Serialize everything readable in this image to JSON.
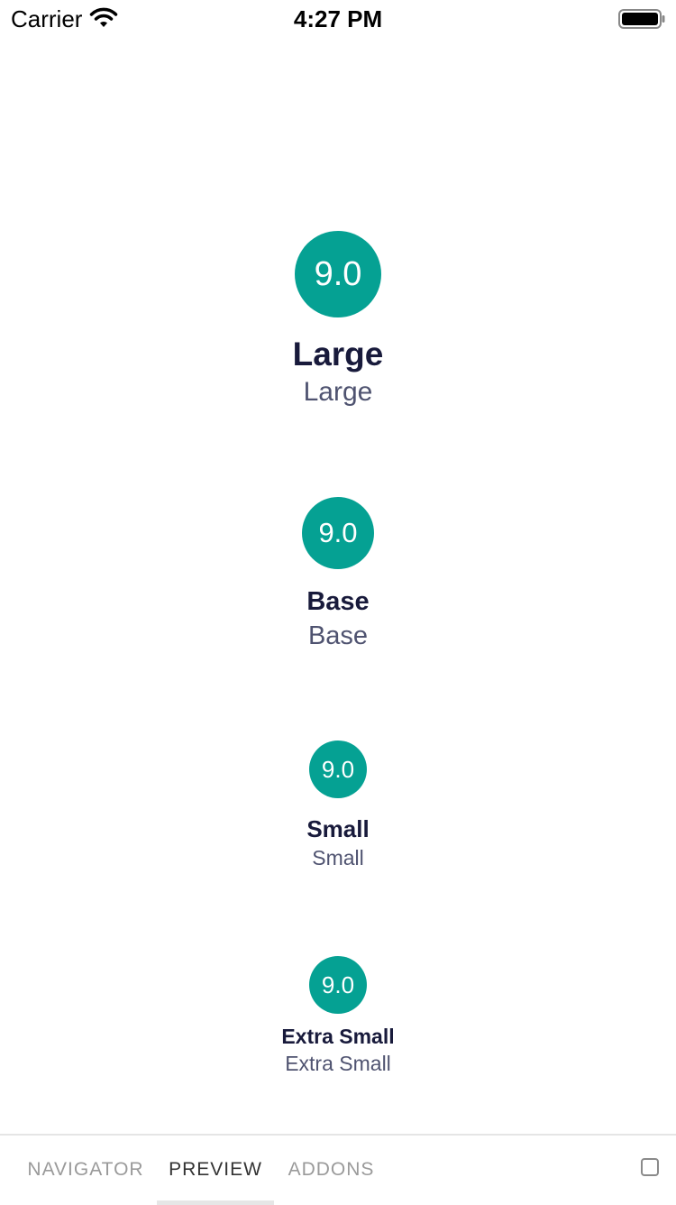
{
  "status_bar": {
    "carrier": "Carrier",
    "time": "4:27 PM",
    "wifi_icon": "wifi-icon",
    "battery_icon": "battery-icon"
  },
  "theme": {
    "badge_color": "#05a193",
    "title_color": "#181a3b",
    "subtitle_color": "#4f5370"
  },
  "ratings": [
    {
      "size": "large",
      "value": "9.0",
      "title": "Large",
      "subtitle": "Large"
    },
    {
      "size": "base",
      "value": "9.0",
      "title": "Base",
      "subtitle": "Base"
    },
    {
      "size": "small",
      "value": "9.0",
      "title": "Small",
      "subtitle": "Small"
    },
    {
      "size": "extra-small",
      "value": "9.0",
      "title": "Extra Small",
      "subtitle": "Extra Small"
    }
  ],
  "tabbar": {
    "tabs": [
      "NAVIGATOR",
      "PREVIEW",
      "ADDONS"
    ],
    "active": "PREVIEW",
    "checkbox_icon": "checkbox-icon"
  }
}
